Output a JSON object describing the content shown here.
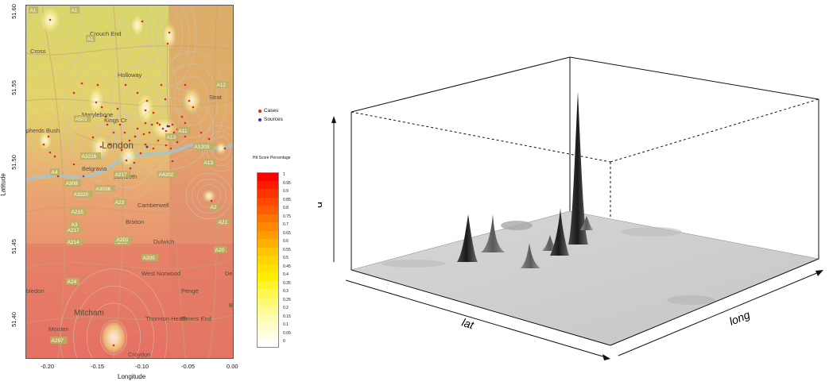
{
  "map": {
    "y_axis_label": "Latitude",
    "x_axis_label": "Longitude",
    "y_ticks": [
      "51.40",
      "51.45",
      "51.50",
      "51.55",
      "51.60"
    ],
    "x_ticks": [
      "-0.20",
      "-0.15",
      "-0.10",
      "-0.05",
      "0.00"
    ],
    "place_names": [
      "Crouch End",
      "Holloway",
      "Strat",
      "Marylebone",
      "Kings Cr",
      "London",
      "Belgravia",
      "Lambeth",
      "Camberwell",
      "Brixton",
      "Dulwich",
      "West Norwood",
      "Penge",
      "Mitcham",
      "Thornton Heath",
      "Elmers End",
      "Morden",
      "Croydon",
      "Cross",
      "pherds Bush",
      "bledon",
      "Dep",
      "B"
    ],
    "road_labels": [
      "A1",
      "A1",
      "A1",
      "A12",
      "A501",
      "A4",
      "A3216",
      "A308",
      "A3220",
      "A3",
      "A3036",
      "A215",
      "A23",
      "A205",
      "A214",
      "A217",
      "A24",
      "A205",
      "A2",
      "A21",
      "A20",
      "A11",
      "A13",
      "A1203",
      "A13",
      "A4202",
      "A217",
      "A201",
      "A297"
    ]
  },
  "legend": {
    "cases_label": "Cases",
    "sources_label": "Sources",
    "cases_color": "#e8231c",
    "sources_color": "#2a37c8"
  },
  "hit_scale": {
    "title": "Hit Score Percentage",
    "labels": [
      "1",
      "0.95",
      "0.9",
      "0.85",
      "0.8",
      "0.75",
      "0.7",
      "0.65",
      "0.6",
      "0.55",
      "0.5",
      "0.45",
      "0.4",
      "0.35",
      "0.3",
      "0.25",
      "0.2",
      "0.15",
      "0.1",
      "0.05",
      "0"
    ],
    "colors": [
      "#ff0000",
      "#ff1a00",
      "#ff3300",
      "#ff4a00",
      "#ff5e00",
      "#ff7300",
      "#ff8800",
      "#ff9c00",
      "#ffb000",
      "#ffc400",
      "#ffd400",
      "#ffe200",
      "#ffee00",
      "#fff428",
      "#fff64e",
      "#fff872",
      "#fffa92",
      "#fffbb0",
      "#fffccc",
      "#fffde4",
      "#ffffff"
    ]
  },
  "surface": {
    "x_axis_label": "lat",
    "y_axis_label": "long",
    "z_axis_label": "d"
  }
}
